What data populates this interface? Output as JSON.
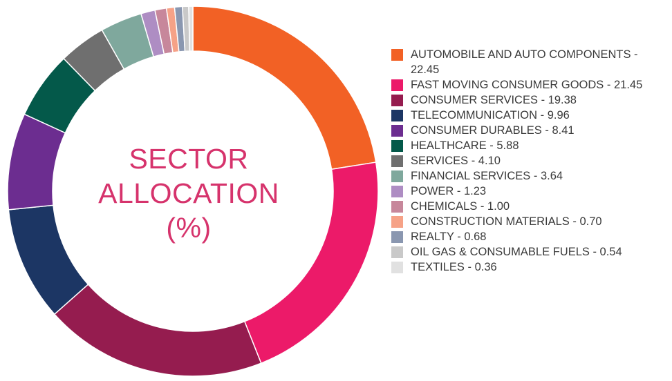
{
  "center_label": {
    "line1": "SECTOR",
    "line2": "ALLOCATION",
    "line3": "(%)"
  },
  "chart_data": {
    "type": "pie",
    "title": "SECTOR ALLOCATION (%)",
    "series": [
      {
        "label": "AUTOMOBILE AND AUTO COMPONENTS - 22.45",
        "name": "AUTOMOBILE AND AUTO COMPONENTS",
        "value": 22.45,
        "color": "#f26125"
      },
      {
        "label": "FAST MOVING CONSUMER GOODS - 21.45",
        "name": "FAST MOVING CONSUMER GOODS",
        "value": 21.45,
        "color": "#ec1a69"
      },
      {
        "label": "CONSUMER SERVICES - 19.38",
        "name": "CONSUMER SERVICES",
        "value": 19.38,
        "color": "#951c4f"
      },
      {
        "label": "TELECOMMUNICATION - 9.96",
        "name": "TELECOMMUNICATION",
        "value": 9.96,
        "color": "#1c3664"
      },
      {
        "label": "CONSUMER DURABLES - 8.41",
        "name": "CONSUMER DURABLES",
        "value": 8.41,
        "color": "#6c2d90"
      },
      {
        "label": "HEALTHCARE - 5.88",
        "name": "HEALTHCARE",
        "value": 5.88,
        "color": "#04594a"
      },
      {
        "label": "SERVICES - 4.10",
        "name": "SERVICES",
        "value": 4.1,
        "color": "#6f6f6f"
      },
      {
        "label": "FINANCIAL SERVICES - 3.64",
        "name": "FINANCIAL SERVICES",
        "value": 3.64,
        "color": "#7fa89d"
      },
      {
        "label": "POWER - 1.23",
        "name": "POWER",
        "value": 1.23,
        "color": "#ae8dc3"
      },
      {
        "label": "CHEMICALS - 1.00",
        "name": "CHEMICALS",
        "value": 1.0,
        "color": "#c7879b"
      },
      {
        "label": "CONSTRUCTION MATERIALS - 0.70",
        "name": "CONSTRUCTION MATERIALS",
        "value": 0.7,
        "color": "#f6a287"
      },
      {
        "label": "REALTY - 0.68",
        "name": "REALTY",
        "value": 0.68,
        "color": "#8a97b0"
      },
      {
        "label": "OIL GAS & CONSUMABLE FUELS - 0.54",
        "name": "OIL GAS & CONSUMABLE FUELS",
        "value": 0.54,
        "color": "#c9c9c9"
      },
      {
        "label": "TEXTILES - 0.36",
        "name": "TEXTILES",
        "value": 0.36,
        "color": "#e1e1e1"
      }
    ],
    "legend_position": "right"
  }
}
